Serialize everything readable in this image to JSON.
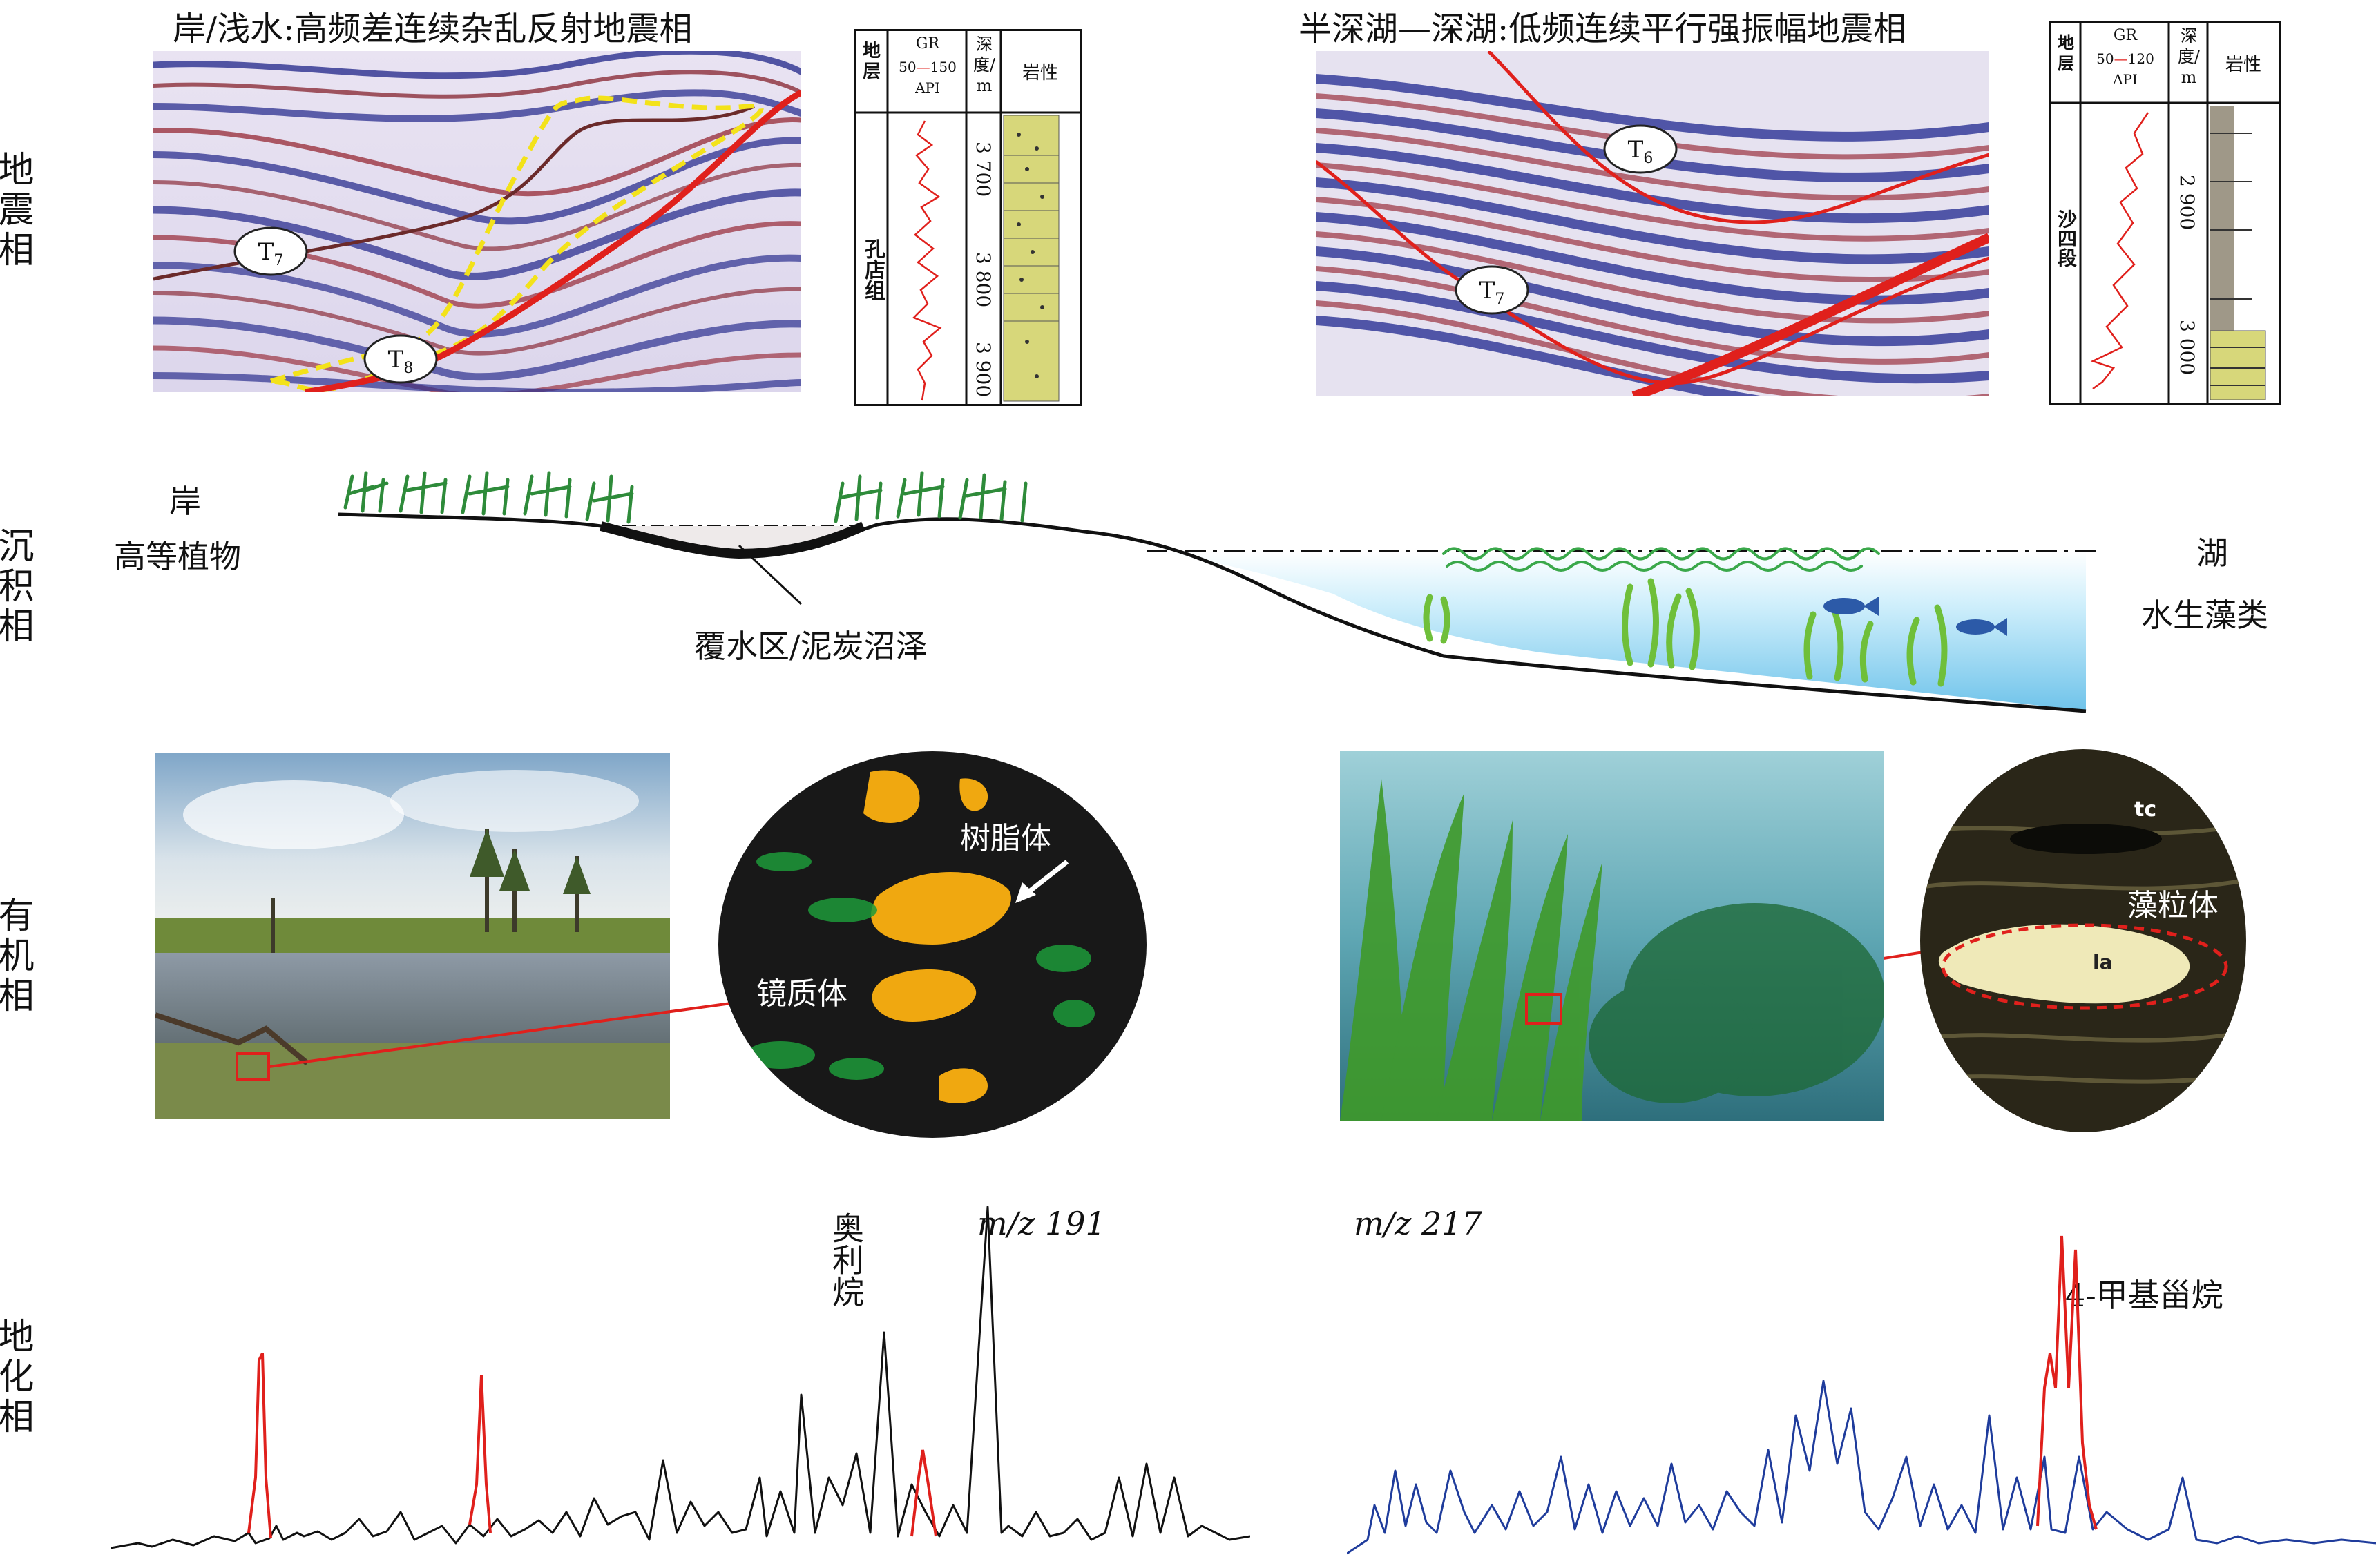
{
  "row_labels": {
    "seismic": "地震相",
    "sedimentary": "沉积相",
    "organic": "有机相",
    "geochemical": "地化相"
  },
  "seismic": {
    "left_title": "岸/浅水:高频差连续杂乱反射地震相",
    "right_title": "半深湖—深湖:低频连续平行强振幅地震相",
    "left_markers": [
      "T7",
      "T8"
    ],
    "right_markers": [
      "T6",
      "T7"
    ]
  },
  "log_left": {
    "col_strata": "地层",
    "col_gr": "GR",
    "gr_range_low": "50",
    "gr_range_high": "150",
    "gr_unit": "API",
    "col_depth": "深度/m",
    "col_lith": "岩性",
    "formation": "孔店组",
    "depths": [
      "3 700",
      "3 800",
      "3 900"
    ]
  },
  "log_right": {
    "col_strata": "地层",
    "col_gr": "GR",
    "gr_range_low": "50",
    "gr_range_high": "120",
    "gr_unit": "API",
    "col_depth": "深度/m",
    "col_lith": "岩性",
    "formation": "沙四段",
    "depths": [
      "2 900",
      "3 000"
    ]
  },
  "sedimentary": {
    "shore_label": "岸",
    "plants_label": "高等植物",
    "swamp_label": "覆水区/泥炭沼泽",
    "lake_label": "湖",
    "algae_label": "水生藻类"
  },
  "organic": {
    "resinite_label": "树脂体",
    "vitrinite_label": "镜质体",
    "alginite_label": "藻粒体",
    "tc_label": "tc",
    "la_label": "la"
  },
  "geochem": {
    "left_mz": "m/z 191",
    "left_peak_label": "奥利烷",
    "right_mz": "m/z 217",
    "right_peak_label": "4-甲基甾烷"
  },
  "colors": {
    "accent_red": "#e0201c",
    "trace_black": "#111111",
    "trace_blue": "#1f3c9c",
    "dashed_yellow": "#f3e21a",
    "plant_green": "#2e8b3a",
    "water_blue": "#8fd3f0",
    "lith_yellow": "#d7d77a"
  }
}
